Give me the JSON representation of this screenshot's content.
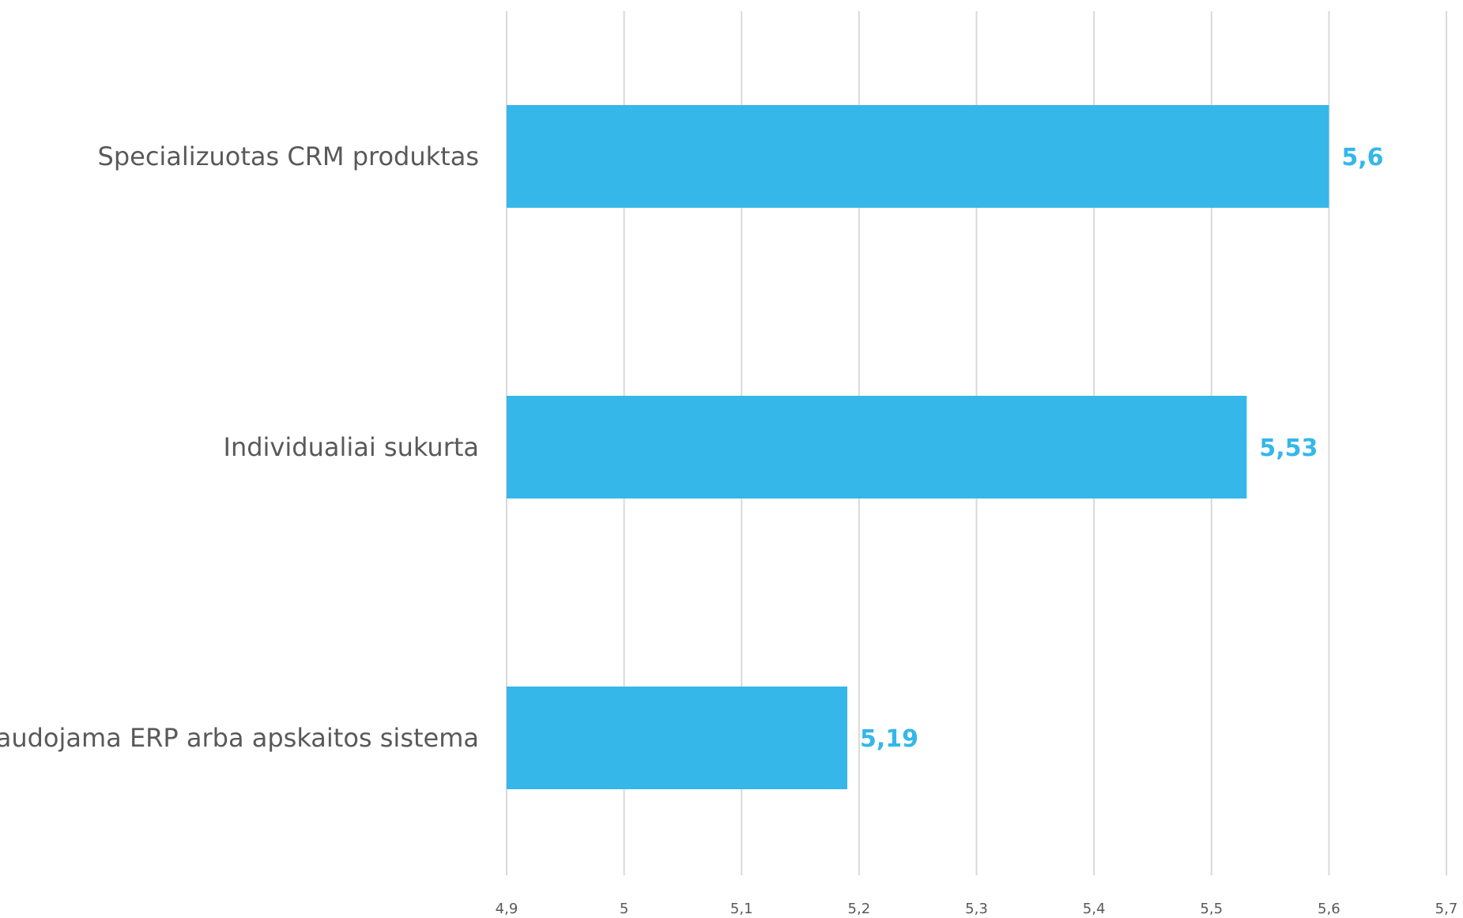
{
  "chart_data": {
    "type": "bar",
    "orientation": "horizontal",
    "categories": [
      "Specializuotas CRM produktas",
      "Individualiai sukurta",
      "Naudojama ERP arba apskaitos sistema"
    ],
    "values": [
      5.6,
      5.53,
      5.19
    ],
    "data_labels": [
      "5,6",
      "5,53",
      "5,19"
    ],
    "x_ticks": [
      4.9,
      5.0,
      5.1,
      5.2,
      5.3,
      5.4,
      5.5,
      5.6,
      5.7
    ],
    "x_tick_labels": [
      "4,9",
      "5",
      "5,1",
      "5,2",
      "5,3",
      "5,4",
      "5,5",
      "5,6",
      "5,7"
    ],
    "xlim": [
      4.9,
      5.7
    ],
    "grid": true,
    "legend": "none",
    "title": "",
    "xlabel": "",
    "ylabel": "",
    "colors": {
      "bar": "#35B7EA",
      "data_label": "#35B7EA",
      "gridline": "#D9D9D9",
      "text": "#595959"
    }
  }
}
